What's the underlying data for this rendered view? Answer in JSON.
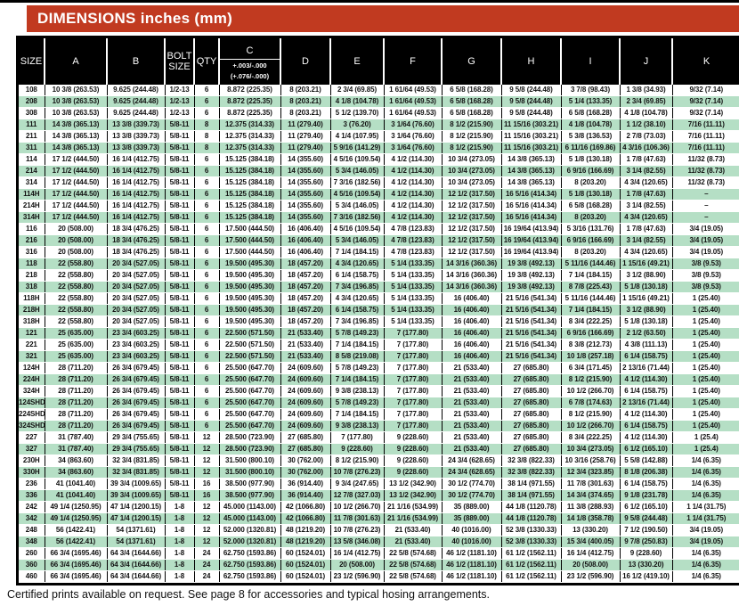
{
  "title": "DIMENSIONS inches (mm)",
  "footer_note": "Certified prints available on request. See page 8 for accessories and typical hosing arrangements.",
  "colors": {
    "banner_red": "#c13a20",
    "row_green": "#b5dfc5",
    "header_bg": "#000000"
  },
  "table": {
    "columns": [
      "SIZE",
      "A",
      "B",
      "BOLT SIZE",
      "QTY",
      "C",
      "D",
      "E",
      "F",
      "G",
      "H",
      "I",
      "J",
      "K"
    ],
    "c_tolerance_line1": "+.003/-.000",
    "c_tolerance_line2": "(+.076/-.000)",
    "rows": [
      [
        "108",
        "10 3/8 (263.53)",
        "9.625 (244.48)",
        "1/2-13",
        "6",
        "8.872 (225.35)",
        "8 (203.21)",
        "2 3/4 (69.85)",
        "1 61/64 (49.53)",
        "6 5/8 (168.28)",
        "9 5/8 (244.48)",
        "3 7/8 (98.43)",
        "1 3/8 (34.93)",
        "9/32 (7.14)"
      ],
      [
        "208",
        "10 3/8 (263.53)",
        "9.625 (244.48)",
        "1/2-13",
        "6",
        "8.872 (225.35)",
        "8 (203.21)",
        "4 1/8 (104.78)",
        "1 61/64 (49.53)",
        "6 5/8 (168.28)",
        "9 5/8 (244.48)",
        "5 1/4 (133.35)",
        "2 3/4 (69.85)",
        "9/32 (7.14)"
      ],
      [
        "308",
        "10 3/8 (263.53)",
        "9.625 (244.48)",
        "1/2-13",
        "6",
        "8.872 (225.35)",
        "8 (203.21)",
        "5 1/2 (139.70)",
        "1 61/64 (49.53)",
        "6 5/8 (168.28)",
        "9 5/8 (244.48)",
        "6 5/8 (168.28)",
        "4 1/8 (104.78)",
        "9/32 (7.14)"
      ],
      [
        "111",
        "14 3/8 (365.13)",
        "13 3/8 (339.73)",
        "5/8-11",
        "8",
        "12.375 (314.33)",
        "11 (279.40)",
        "3 (76.20)",
        "3 1/64 (76.60)",
        "8 1/2 (215.90)",
        "11 15/16 (303.21)",
        "4 1/8 (104.78)",
        "1 1/2 (38.10)",
        "7/16 (11.11)"
      ],
      [
        "211",
        "14 3/8 (365.13)",
        "13 3/8 (339.73)",
        "5/8-11",
        "8",
        "12.375 (314.33)",
        "11 (279.40)",
        "4 1/4 (107.95)",
        "3 1/64 (76.60)",
        "8 1/2 (215.90)",
        "11 15/16 (303.21)",
        "5 3/8 (136.53)",
        "2 7/8 (73.03)",
        "7/16 (11.11)"
      ],
      [
        "311",
        "14 3/8 (365.13)",
        "13 3/8 (339.73)",
        "5/8-11",
        "8",
        "12.375 (314.33)",
        "11 (279.40)",
        "5 9/16 (141.29)",
        "3 1/64 (76.60)",
        "8 1/2 (215.90)",
        "11 15/16 (303.21)",
        "6 11/16 (169.86)",
        "4 3/16 (106.36)",
        "7/16 (11.11)"
      ],
      [
        "114",
        "17 1/2 (444.50)",
        "16 1/4 (412.75)",
        "5/8-11",
        "6",
        "15.125 (384.18)",
        "14 (355.60)",
        "4 5/16 (109.54)",
        "4 1/2 (114.30)",
        "10 3/4 (273.05)",
        "14 3/8 (365.13)",
        "5 1/8 (130.18)",
        "1 7/8 (47.63)",
        "11/32 (8.73)"
      ],
      [
        "214",
        "17 1/2 (444.50)",
        "16 1/4 (412.75)",
        "5/8-11",
        "6",
        "15.125 (384.18)",
        "14 (355.60)",
        "5 3/4 (146.05)",
        "4 1/2 (114.30)",
        "10 3/4 (273.05)",
        "14 3/8 (365.13)",
        "6 9/16 (166.69)",
        "3 1/4 (82.55)",
        "11/32 (8.73)"
      ],
      [
        "314",
        "17 1/2 (444.50)",
        "16 1/4 (412.75)",
        "5/8-11",
        "6",
        "15.125 (384.18)",
        "14 (355.60)",
        "7 3/16 (182.56)",
        "4 1/2 (114.30)",
        "10 3/4 (273.05)",
        "14 3/8 (365.13)",
        "8 (203.20)",
        "4 3/4 (120.65)",
        "11/32 (8.73)"
      ],
      [
        "114H",
        "17 1/2 (444.50)",
        "16 1/4 (412.75)",
        "5/8-11",
        "6",
        "15.125 (384.18)",
        "14 (355.60)",
        "4 5/16 (109.54)",
        "4 1/2 (114.30)",
        "12 1/2 (317.50)",
        "16 5/16 (414.34)",
        "5 1/8 (130.18)",
        "1 7/8 (47.63)",
        "–"
      ],
      [
        "214H",
        "17 1/2 (444.50)",
        "16 1/4 (412.75)",
        "5/8-11",
        "6",
        "15.125 (384.18)",
        "14 (355.60)",
        "5 3/4 (146.05)",
        "4 1/2 (114.30)",
        "12 1/2 (317.50)",
        "16 5/16 (414.34)",
        "6 5/8 (168.28)",
        "3 1/4 (82.55)",
        "–"
      ],
      [
        "314H",
        "17 1/2 (444.50)",
        "16 1/4 (412.75)",
        "5/8-11",
        "6",
        "15.125 (384.18)",
        "14 (355.60)",
        "7 3/16 (182.56)",
        "4 1/2 (114.30)",
        "12 1/2 (317.50)",
        "16 5/16 (414.34)",
        "8 (203.20)",
        "4 3/4 (120.65)",
        "–"
      ],
      [
        "116",
        "20 (508.00)",
        "18 3/4 (476.25)",
        "5/8-11",
        "6",
        "17.500 (444.50)",
        "16 (406.40)",
        "4 5/16 (109.54)",
        "4 7/8 (123.83)",
        "12 1/2 (317.50)",
        "16 19/64 (413.94)",
        "5 3/16 (131.76)",
        "1 7/8 (47.63)",
        "3/4 (19.05)"
      ],
      [
        "216",
        "20 (508.00)",
        "18 3/4 (476.25)",
        "5/8-11",
        "6",
        "17.500 (444.50)",
        "16 (406.40)",
        "5 3/4 (146.05)",
        "4 7/8 (123.83)",
        "12 1/2 (317.50)",
        "16 19/64 (413.94)",
        "6 9/16 (166.69)",
        "3 1/4 (82.55)",
        "3/4 (19.05)"
      ],
      [
        "316",
        "20 (508.00)",
        "18 3/4 (476.25)",
        "5/8-11",
        "6",
        "17.500 (444.50)",
        "16 (406.40)",
        "7 1/4 (184.15)",
        "4 7/8 (123.83)",
        "12 1/2 (317.50)",
        "16 19/64 (413.94)",
        "8 (203.20)",
        "4 3/4 (120.65)",
        "3/4 (19.05)"
      ],
      [
        "118",
        "22 (558.80)",
        "20 3/4 (527.05)",
        "5/8-11",
        "6",
        "19.500 (495.30)",
        "18 (457.20)",
        "4 3/4 (120.65)",
        "5 1/4 (133.35)",
        "14 3/16 (360.36)",
        "19 3/8 (492.13)",
        "5 11/16 (144.46)",
        "1 15/16 (49.21)",
        "3/8  (9.53)"
      ],
      [
        "218",
        "22 (558.80)",
        "20 3/4 (527.05)",
        "5/8-11",
        "6",
        "19.500 (495.30)",
        "18 (457.20)",
        "6 1/4 (158.75)",
        "5 1/4 (133.35)",
        "14 3/16 (360.36)",
        "19 3/8 (492.13)",
        "7 1/4 (184.15)",
        "3 1/2 (88.90)",
        "3/8  (9.53)"
      ],
      [
        "318",
        "22 (558.80)",
        "20 3/4 (527.05)",
        "5/8-11",
        "6",
        "19.500 (495.30)",
        "18 (457.20)",
        "7 3/4 (196.85)",
        "5 1/4 (133.35)",
        "14 3/16 (360.36)",
        "19 3/8 (492.13)",
        "8 7/8 (225.43)",
        "5 1/8 (130.18)",
        "3/8  (9.53)"
      ],
      [
        "118H",
        "22 (558.80)",
        "20 3/4 (527.05)",
        "5/8-11",
        "6",
        "19.500 (495.30)",
        "18 (457.20)",
        "4 3/4 (120.65)",
        "5 1/4 (133.35)",
        "16 (406.40)",
        "21 5/16 (541.34)",
        "5 11/16 (144.46)",
        "1 15/16 (49.21)",
        "1 (25.40)"
      ],
      [
        "218H",
        "22 (558.80)",
        "20 3/4 (527.05)",
        "5/8-11",
        "6",
        "19.500 (495.30)",
        "18 (457.20)",
        "6 1/4 (158.75)",
        "5 1/4 (133.35)",
        "16 (406.40)",
        "21 5/16 (541.34)",
        "7 1/4 (184.15)",
        "3 1/2 (88.90)",
        "1 (25.40)"
      ],
      [
        "318H",
        "22 (558.80)",
        "20 3/4 (527.05)",
        "5/8-11",
        "6",
        "19.500 (495.30)",
        "18 (457.20)",
        "7 3/4 (196.85)",
        "5 1/4 (133.35)",
        "16 (406.40)",
        "21 5/16 (541.34)",
        "8 3/4 (222.25)",
        "5 1/8 (130.18)",
        "1 (25.40)"
      ],
      [
        "121",
        "25 (635.00)",
        "23 3/4 (603.25)",
        "5/8-11",
        "6",
        "22.500 (571.50)",
        "21 (533.40)",
        "5 7/8 (149.23)",
        "7 (177.80)",
        "16 (406.40)",
        "21 5/16 (541.34)",
        "6 9/16 (166.69)",
        "2 1/2 (63.50)",
        "1 (25.40)"
      ],
      [
        "221",
        "25 (635.00)",
        "23 3/4 (603.25)",
        "5/8-11",
        "6",
        "22.500 (571.50)",
        "21 (533.40)",
        "7 1/4 (184.15)",
        "7 (177.80)",
        "16 (406.40)",
        "21 5/16 (541.34)",
        "8 3/8 (212.73)",
        "4 3/8 (111.13)",
        "1 (25.40)"
      ],
      [
        "321",
        "25 (635.00)",
        "23 3/4 (603.25)",
        "5/8-11",
        "6",
        "22.500 (571.50)",
        "21 (533.40)",
        "8 5/8 (219.08)",
        "7 (177.80)",
        "16 (406.40)",
        "21 5/16 (541.34)",
        "10 1/8 (257.18)",
        "6 1/4 (158.75)",
        "1 (25.40)"
      ],
      [
        "124H",
        "28 (711.20)",
        "26 3/4 (679.45)",
        "5/8-11",
        "6",
        "25.500 (647.70)",
        "24 (609.60)",
        "5 7/8 (149.23)",
        "7 (177.80)",
        "21 (533.40)",
        "27 (685.80)",
        "6 3/4 (171.45)",
        "2 13/16 (71.44)",
        "1 (25.40)"
      ],
      [
        "224H",
        "28 (711.20)",
        "26 3/4 (679.45)",
        "5/8-11",
        "6",
        "25.500 (647.70)",
        "24 (609.60)",
        "7 1/4 (184.15)",
        "7 (177.80)",
        "21 (533.40)",
        "27 (685.80)",
        "8 1/2 (215.90)",
        "4 1/2 (114.30)",
        "1 (25.40)"
      ],
      [
        "324H",
        "28 (711.20)",
        "26 3/4 (679.45)",
        "5/8-11",
        "6",
        "25.500 (647.70)",
        "24 (609.60)",
        "9 3/8 (238.13)",
        "7 (177.80)",
        "21 (533.40)",
        "27 (685.80)",
        "10 1/2 (266.70)",
        "6 1/4 (158.75)",
        "1 (25.40)"
      ],
      [
        "124SHD",
        "28 (711.20)",
        "26 3/4 (679.45)",
        "5/8-11",
        "6",
        "25.500 (647.70)",
        "24 (609.60)",
        "5 7/8 (149.23)",
        "7 (177.80)",
        "21 (533.40)",
        "27 (685.80)",
        "6 7/8 (174.63)",
        "2 13/16 (71.44)",
        "1 (25.40)"
      ],
      [
        "224SHD",
        "28 (711.20)",
        "26 3/4 (679.45)",
        "5/8-11",
        "6",
        "25.500 (647.70)",
        "24 (609.60)",
        "7 1/4 (184.15)",
        "7 (177.80)",
        "21 (533.40)",
        "27 (685.80)",
        "8 1/2 (215.90)",
        "4 1/2 (114.30)",
        "1 (25.40)"
      ],
      [
        "324SHD",
        "28 (711.20)",
        "26 3/4 (679.45)",
        "5/8-11",
        "6",
        "25.500 (647.70)",
        "24 (609.60)",
        "9 3/8 (238.13)",
        "7 (177.80)",
        "21 (533.40)",
        "27 (685.80)",
        "10 1/2 (266.70)",
        "6 1/4 (158.75)",
        "1 (25.40)"
      ],
      [
        "227",
        "31 (787.40)",
        "29 3/4 (755.65)",
        "5/8-11",
        "12",
        "28.500 (723.90)",
        "27 (685.80)",
        "7 (177.80)",
        "9 (228.60)",
        "21 (533.40)",
        "27 (685.80)",
        "8 3/4 (222.25)",
        "4 1/2 (114.30)",
        "1 (25.4)"
      ],
      [
        "327",
        "31 (787.40)",
        "29 3/4 (755.65)",
        "5/8-11",
        "12",
        "28.500 (723.90)",
        "27 (685.80)",
        "9 (228.60)",
        "9 (228.60)",
        "21 (533.40)",
        "27 (685.80)",
        "10 3/4 (273.05)",
        "6 1/2 (165.10)",
        "1 (25.4)"
      ],
      [
        "230H",
        "34 (863.60)",
        "32 3/4 (831.85)",
        "5/8-11",
        "12",
        "31.500 (800.10)",
        "30 (762.00)",
        "8 1/2 (215.90)",
        "9 (228.60)",
        "24 3/4 (628.65)",
        "32 3/8 (822.33)",
        "10 3/16 (258.76)",
        "5 5/8 (142.88)",
        "1/4 (6.35)"
      ],
      [
        "330H",
        "34 (863.60)",
        "32 3/4 (831.85)",
        "5/8-11",
        "12",
        "31.500 (800.10)",
        "30 (762.00)",
        "10 7/8 (276.23)",
        "9 (228.60)",
        "24 3/4 (628.65)",
        "32 3/8 (822.33)",
        "12 3/4 (323.85)",
        "8 1/8 (206.38)",
        "1/4 (6.35)"
      ],
      [
        "236",
        "41 (1041.40)",
        "39 3/4 (1009.65)",
        "5/8-11",
        "16",
        "38.500 (977.90)",
        "36 (914.40)",
        "9 3/4 (247.65)",
        "13 1/2 (342.90)",
        "30 1/2 (774.70)",
        "38 1/4 (971.55)",
        "11 7/8 (301.63)",
        "6 1/4 (158.75)",
        "1/4 (6.35)"
      ],
      [
        "336",
        "41 (1041.40)",
        "39 3/4 (1009.65)",
        "5/8-11",
        "16",
        "38.500 (977.90)",
        "36 (914.40)",
        "12 7/8 (327.03)",
        "13 1/2 (342.90)",
        "30 1/2 (774.70)",
        "38 1/4 (971.55)",
        "14 3/4 (374.65)",
        "9 1/8 (231.78)",
        "1/4 (6.35)"
      ],
      [
        "242",
        "49 1/4 (1250.95)",
        "47 1/4 (1200.15)",
        "1-8",
        "12",
        "45.000 (1143.00)",
        "42 (1066.80)",
        "10 1/2 (266.70)",
        "21 1/16 (534.99)",
        "35 (889.00)",
        "44 1/8 (1120.78)",
        "11 3/8 (288.93)",
        "6 1/2 (165.10)",
        "1 1/4 (31.75)"
      ],
      [
        "342",
        "49 1/4 (1250.95)",
        "47 1/4 (1200.15)",
        "1-8",
        "12",
        "45.000 (1143.00)",
        "42 (1066.80)",
        "11 7/8 (301.63)",
        "21 1/16 (534.99)",
        "35 (889.00)",
        "44 1/8 (1120.78)",
        "14 1/8 (358.78)",
        "9 5/8 (244.48)",
        "1 1/4 (31.75)"
      ],
      [
        "248",
        "56 (1422.41)",
        "54 (1371.61)",
        "1-8",
        "12",
        "52.000 (1320.81)",
        "48 (1219.20)",
        "10 7/8 (276.23)",
        "21 (533.40)",
        "40 (1016.00)",
        "52 3/8 (1330.33)",
        "13 (330.20)",
        "7 1/2 (190.50)",
        "3/4 (19.05)"
      ],
      [
        "348",
        "56 (1422.41)",
        "54 (1371.61)",
        "1-8",
        "12",
        "52.000 (1320.81)",
        "48 (1219.20)",
        "13 5/8 (346.08)",
        "21 (533.40)",
        "40 (1016.00)",
        "52 3/8 (1330.33)",
        "15 3/4 (400.05)",
        "9 7/8 (250.83)",
        "3/4 (19.05)"
      ],
      [
        "260",
        "66 3/4 (1695.46)",
        "64 3/4 (1644.66)",
        "1-8",
        "24",
        "62.750 (1593.86)",
        "60 (1524.01)",
        "16 1/4 (412.75)",
        "22 5/8 (574.68)",
        "46 1/2 (1181.10)",
        "61 1/2 (1562.11)",
        "16 1/4 (412.75)",
        "9 (228.60)",
        "1/4 (6.35)"
      ],
      [
        "360",
        "66 3/4 (1695.46)",
        "64 3/4 (1644.66)",
        "1-8",
        "24",
        "62.750 (1593.86)",
        "60 (1524.01)",
        "20 (508.00)",
        "22 5/8 (574.68)",
        "46 1/2 (1181.10)",
        "61 1/2 (1562.11)",
        "20 (508.00)",
        "13 (330.20)",
        "1/4 (6.35)"
      ],
      [
        "460",
        "66 3/4 (1695.46)",
        "64 3/4 (1644.66)",
        "1-8",
        "24",
        "62.750 (1593.86)",
        "60 (1524.01)",
        "23 1/2 (596.90)",
        "22 5/8 (574.68)",
        "46 1/2 (1181.10)",
        "61 1/2 (1562.11)",
        "23 1/2 (596.90)",
        "16 1/2 (419.10)",
        "1/4 (6.35)"
      ]
    ]
  }
}
